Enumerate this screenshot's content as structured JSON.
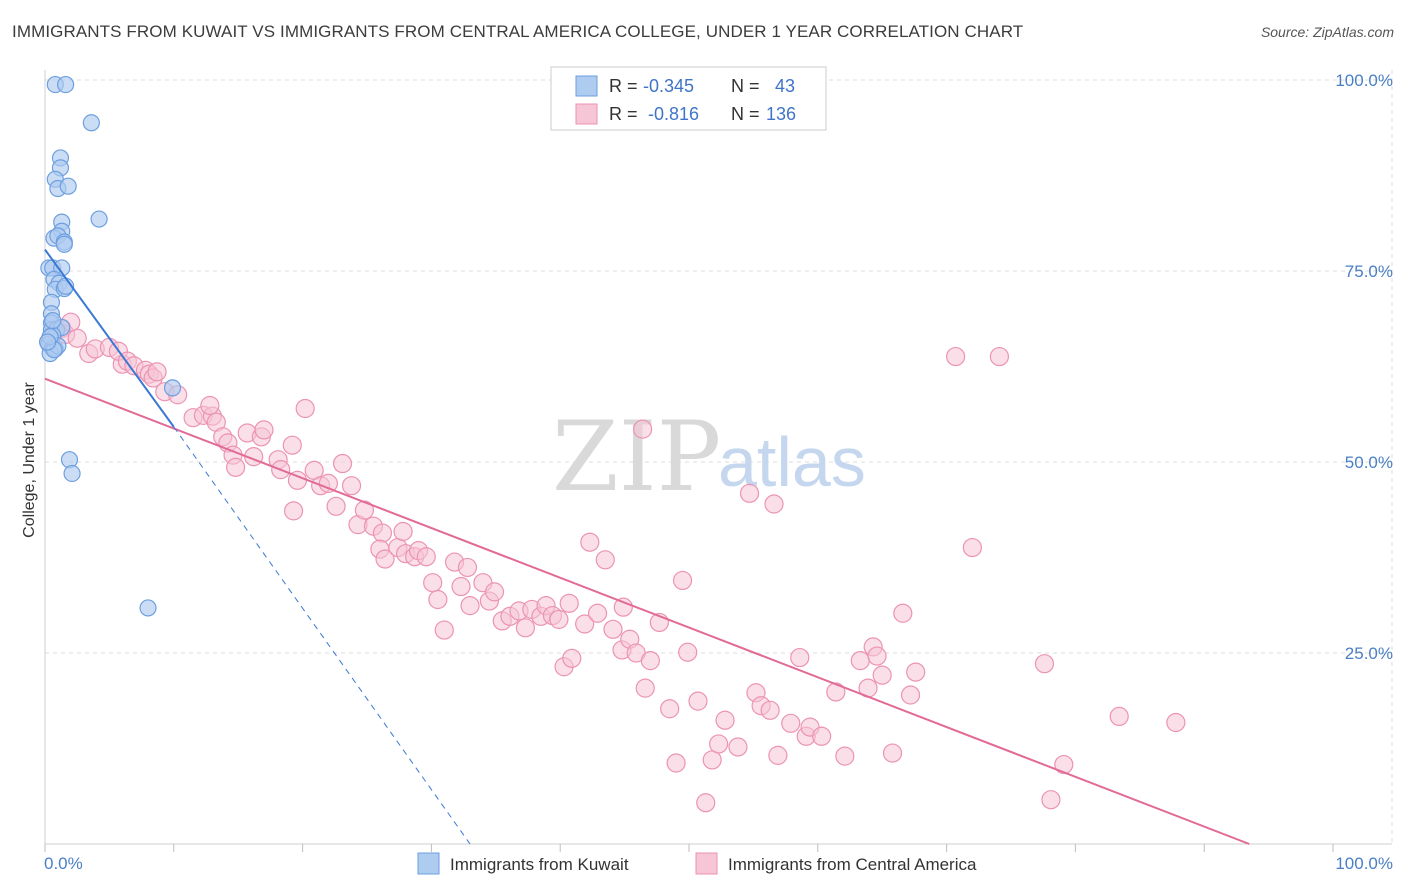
{
  "title": "IMMIGRANTS FROM KUWAIT VS IMMIGRANTS FROM CENTRAL AMERICA COLLEGE, UNDER 1 YEAR CORRELATION CHART",
  "source": "Source: ZipAtlas.com",
  "watermark": {
    "part1": "ZIP",
    "part2": "atlas"
  },
  "legend": {
    "rows": [
      {
        "r_label": "R =",
        "r_value": "-0.345",
        "n_label": "N =",
        "n_value": "43"
      },
      {
        "r_label": "R =",
        "r_value": "-0.816",
        "n_label": "N =",
        "n_value": "136"
      }
    ]
  },
  "colors": {
    "blue_fill": "#aecbf0",
    "blue_stroke": "#6d9fe0",
    "blue_line": "#3a78d4",
    "pink_fill": "#f6c5d6",
    "pink_stroke": "#ec93b3",
    "pink_line": "#e26a96",
    "grid": "#dddddd",
    "tick_text": "#4a7fc4"
  },
  "chart_data": {
    "type": "scatter",
    "title": "IMMIGRANTS FROM KUWAIT VS IMMIGRANTS FROM CENTRAL AMERICA COLLEGE, UNDER 1 YEAR CORRELATION CHART",
    "xlabel": "",
    "ylabel": "College, Under 1 year",
    "xlim": [
      0,
      100
    ],
    "ylim": [
      0,
      100
    ],
    "x_tick_labels": [
      "0.0%",
      "100.0%"
    ],
    "y_ticks": [
      25,
      50,
      75,
      100
    ],
    "y_tick_labels": [
      "25.0%",
      "50.0%",
      "75.0%",
      "100.0%"
    ],
    "grid": true,
    "legend_position": "bottom-center",
    "series": [
      {
        "name": "Immigrants from Kuwait",
        "color": "#6d9fe0",
        "points": [
          [
            0.8,
            99.4
          ],
          [
            1.6,
            99.4
          ],
          [
            3.6,
            94.4
          ],
          [
            1.2,
            89.8
          ],
          [
            1.2,
            88.5
          ],
          [
            0.8,
            87.0
          ],
          [
            1.0,
            85.8
          ],
          [
            1.8,
            86.1
          ],
          [
            4.2,
            81.8
          ],
          [
            1.3,
            81.4
          ],
          [
            1.3,
            80.2
          ],
          [
            0.7,
            79.3
          ],
          [
            1.0,
            79.6
          ],
          [
            1.5,
            78.8
          ],
          [
            1.5,
            78.5
          ],
          [
            0.3,
            75.4
          ],
          [
            0.6,
            75.4
          ],
          [
            1.3,
            75.4
          ],
          [
            0.7,
            73.9
          ],
          [
            1.1,
            73.4
          ],
          [
            0.8,
            72.6
          ],
          [
            1.5,
            72.7
          ],
          [
            1.6,
            73.0
          ],
          [
            0.5,
            70.9
          ],
          [
            0.5,
            69.4
          ],
          [
            0.5,
            68.2
          ],
          [
            0.5,
            67.3
          ],
          [
            0.9,
            67.3
          ],
          [
            1.3,
            67.6
          ],
          [
            0.6,
            66.6
          ],
          [
            0.3,
            65.4
          ],
          [
            0.6,
            64.9
          ],
          [
            0.8,
            64.8
          ],
          [
            0.4,
            64.2
          ],
          [
            1.0,
            65.2
          ],
          [
            0.7,
            64.7
          ],
          [
            0.4,
            66.4
          ],
          [
            0.2,
            65.7
          ],
          [
            9.9,
            59.7
          ],
          [
            1.9,
            50.3
          ],
          [
            2.1,
            48.5
          ],
          [
            8.0,
            30.9
          ],
          [
            0.6,
            68.5
          ]
        ],
        "trend": {
          "x0": 0,
          "y0": 77.8,
          "x1": 10.0,
          "y1": 54.6,
          "dashed_to_x": 33.0,
          "dashed_to_y": 0
        }
      },
      {
        "name": "Immigrants from Central America",
        "color": "#ec93b3",
        "points": [
          [
            0.4,
            66.0
          ],
          [
            0.8,
            67.2
          ],
          [
            1.3,
            67.5
          ],
          [
            1.6,
            66.7
          ],
          [
            2.5,
            66.2
          ],
          [
            3.4,
            64.2
          ],
          [
            3.9,
            64.8
          ],
          [
            5.0,
            65.0
          ],
          [
            6.0,
            62.8
          ],
          [
            5.7,
            64.5
          ],
          [
            6.4,
            63.2
          ],
          [
            6.9,
            62.6
          ],
          [
            7.8,
            62.0
          ],
          [
            8.1,
            61.5
          ],
          [
            8.4,
            61.0
          ],
          [
            8.7,
            61.8
          ],
          [
            9.3,
            59.2
          ],
          [
            10.3,
            58.8
          ],
          [
            11.5,
            55.8
          ],
          [
            12.3,
            56.1
          ],
          [
            13.0,
            56.0
          ],
          [
            12.8,
            57.4
          ],
          [
            13.3,
            55.2
          ],
          [
            13.8,
            53.3
          ],
          [
            14.2,
            52.5
          ],
          [
            14.6,
            50.9
          ],
          [
            14.8,
            49.3
          ],
          [
            15.7,
            53.8
          ],
          [
            16.2,
            50.7
          ],
          [
            16.8,
            53.3
          ],
          [
            17.0,
            54.2
          ],
          [
            18.1,
            50.3
          ],
          [
            18.3,
            49.0
          ],
          [
            19.2,
            52.2
          ],
          [
            19.6,
            47.6
          ],
          [
            19.3,
            43.6
          ],
          [
            20.2,
            57.0
          ],
          [
            20.9,
            48.9
          ],
          [
            21.4,
            46.9
          ],
          [
            22.0,
            47.2
          ],
          [
            22.6,
            44.2
          ],
          [
            23.1,
            49.8
          ],
          [
            23.8,
            46.9
          ],
          [
            24.3,
            41.8
          ],
          [
            24.8,
            43.7
          ],
          [
            25.5,
            41.6
          ],
          [
            26.2,
            40.7
          ],
          [
            26.0,
            38.6
          ],
          [
            26.4,
            37.3
          ],
          [
            27.4,
            38.8
          ],
          [
            27.8,
            40.9
          ],
          [
            28.0,
            38.0
          ],
          [
            28.7,
            37.6
          ],
          [
            29.0,
            38.4
          ],
          [
            29.6,
            37.6
          ],
          [
            30.1,
            34.2
          ],
          [
            30.5,
            32.0
          ],
          [
            31.0,
            28.0
          ],
          [
            31.8,
            36.9
          ],
          [
            32.3,
            33.7
          ],
          [
            32.8,
            36.2
          ],
          [
            33.0,
            31.2
          ],
          [
            34.0,
            34.2
          ],
          [
            34.5,
            31.8
          ],
          [
            34.9,
            33.0
          ],
          [
            35.5,
            29.2
          ],
          [
            36.1,
            29.8
          ],
          [
            36.8,
            30.5
          ],
          [
            37.3,
            28.3
          ],
          [
            37.8,
            30.7
          ],
          [
            38.5,
            29.8
          ],
          [
            38.9,
            31.2
          ],
          [
            39.4,
            29.9
          ],
          [
            39.9,
            29.4
          ],
          [
            40.7,
            31.5
          ],
          [
            40.3,
            23.2
          ],
          [
            40.9,
            24.3
          ],
          [
            41.9,
            28.8
          ],
          [
            42.3,
            39.5
          ],
          [
            42.9,
            30.2
          ],
          [
            43.5,
            37.2
          ],
          [
            44.1,
            28.1
          ],
          [
            44.8,
            25.4
          ],
          [
            44.9,
            31.0
          ],
          [
            45.4,
            26.8
          ],
          [
            45.9,
            25.0
          ],
          [
            46.4,
            54.3
          ],
          [
            46.6,
            20.4
          ],
          [
            47.0,
            24.0
          ],
          [
            47.7,
            29.0
          ],
          [
            48.5,
            17.7
          ],
          [
            49.0,
            10.6
          ],
          [
            49.5,
            34.5
          ],
          [
            49.9,
            25.1
          ],
          [
            50.7,
            18.7
          ],
          [
            51.3,
            5.4
          ],
          [
            51.8,
            11.0
          ],
          [
            52.3,
            13.1
          ],
          [
            52.8,
            16.2
          ],
          [
            53.8,
            12.7
          ],
          [
            54.7,
            45.9
          ],
          [
            55.2,
            19.8
          ],
          [
            55.6,
            18.1
          ],
          [
            56.3,
            17.5
          ],
          [
            56.6,
            44.5
          ],
          [
            56.9,
            11.6
          ],
          [
            57.9,
            15.8
          ],
          [
            58.6,
            24.4
          ],
          [
            59.1,
            14.1
          ],
          [
            59.4,
            15.3
          ],
          [
            60.3,
            14.1
          ],
          [
            61.4,
            19.9
          ],
          [
            62.1,
            11.5
          ],
          [
            63.3,
            24.0
          ],
          [
            63.9,
            20.4
          ],
          [
            64.3,
            25.8
          ],
          [
            64.6,
            24.6
          ],
          [
            65.0,
            22.1
          ],
          [
            65.8,
            11.9
          ],
          [
            66.6,
            30.2
          ],
          [
            67.2,
            19.5
          ],
          [
            67.6,
            22.5
          ],
          [
            70.7,
            63.8
          ],
          [
            72.0,
            38.8
          ],
          [
            74.1,
            63.8
          ],
          [
            77.6,
            23.6
          ],
          [
            78.1,
            5.8
          ],
          [
            79.1,
            10.4
          ],
          [
            83.4,
            16.7
          ],
          [
            87.8,
            15.9
          ],
          [
            2.0,
            68.3
          ]
        ],
        "trend": {
          "x0": 0,
          "y0": 60.9,
          "x1": 93.5,
          "y1": 0
        }
      }
    ]
  },
  "bottom_legend": {
    "items": [
      {
        "label": "Immigrants from Kuwait"
      },
      {
        "label": "Immigrants from Central America"
      }
    ]
  }
}
